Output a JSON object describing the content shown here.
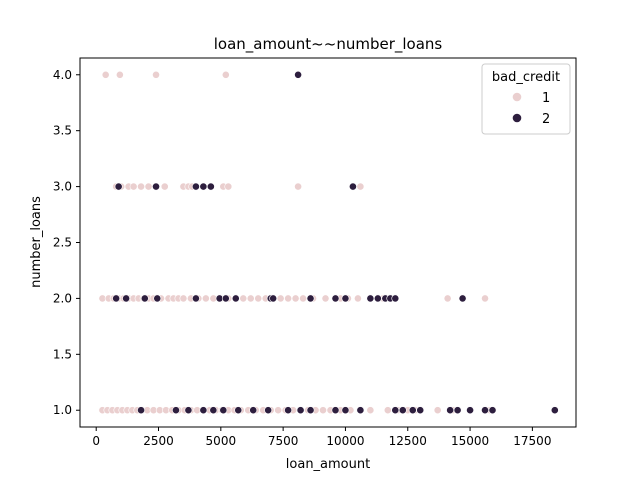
{
  "chart_data": {
    "type": "scatter",
    "title": "loan_amount~~number_loans",
    "xlabel": "loan_amount",
    "ylabel": "number_loans",
    "xlim": [
      -650,
      19250
    ],
    "ylim": [
      0.85,
      4.15
    ],
    "xticks": [
      "0",
      "2500",
      "5000",
      "7500",
      "10000",
      "12500",
      "15000",
      "17500"
    ],
    "xtick_values": [
      0,
      2500,
      5000,
      7500,
      10000,
      12500,
      15000,
      17500
    ],
    "yticks": [
      "1.0",
      "1.5",
      "2.0",
      "2.5",
      "3.0",
      "3.5",
      "4.0"
    ],
    "ytick_values": [
      1.0,
      1.5,
      2.0,
      2.5,
      3.0,
      3.5,
      4.0
    ],
    "grid": false,
    "legend": {
      "title": "bad_credit",
      "placement": "top-right"
    },
    "series": [
      {
        "name": "1",
        "color": "#eacfcf",
        "points": [
          [
            380,
            4
          ],
          [
            950,
            4
          ],
          [
            2400,
            4
          ],
          [
            5200,
            4
          ],
          [
            800,
            3
          ],
          [
            1000,
            3
          ],
          [
            1300,
            3
          ],
          [
            1500,
            3
          ],
          [
            1800,
            3
          ],
          [
            2100,
            3
          ],
          [
            2750,
            3
          ],
          [
            3500,
            3
          ],
          [
            3700,
            3
          ],
          [
            3850,
            3
          ],
          [
            5100,
            3
          ],
          [
            5300,
            3
          ],
          [
            8100,
            3
          ],
          [
            10600,
            3
          ],
          [
            250,
            2
          ],
          [
            500,
            2
          ],
          [
            700,
            2
          ],
          [
            900,
            2
          ],
          [
            1100,
            2
          ],
          [
            1300,
            2
          ],
          [
            1500,
            2
          ],
          [
            1700,
            2
          ],
          [
            1900,
            2
          ],
          [
            2100,
            2
          ],
          [
            2300,
            2
          ],
          [
            2600,
            2
          ],
          [
            2900,
            2
          ],
          [
            3100,
            2
          ],
          [
            3300,
            2
          ],
          [
            3500,
            2
          ],
          [
            3800,
            2
          ],
          [
            4100,
            2
          ],
          [
            4400,
            2
          ],
          [
            4700,
            2
          ],
          [
            5000,
            2
          ],
          [
            5300,
            2
          ],
          [
            5600,
            2
          ],
          [
            5900,
            2
          ],
          [
            6200,
            2
          ],
          [
            6500,
            2
          ],
          [
            6800,
            2
          ],
          [
            7100,
            2
          ],
          [
            7400,
            2
          ],
          [
            7700,
            2
          ],
          [
            8000,
            2
          ],
          [
            8300,
            2
          ],
          [
            8700,
            2
          ],
          [
            9200,
            2
          ],
          [
            9800,
            2
          ],
          [
            10100,
            2
          ],
          [
            10500,
            2
          ],
          [
            11500,
            2
          ],
          [
            14100,
            2
          ],
          [
            15600,
            2
          ],
          [
            250,
            1
          ],
          [
            450,
            1
          ],
          [
            650,
            1
          ],
          [
            850,
            1
          ],
          [
            1050,
            1
          ],
          [
            1250,
            1
          ],
          [
            1450,
            1
          ],
          [
            1650,
            1
          ],
          [
            1850,
            1
          ],
          [
            2050,
            1
          ],
          [
            2300,
            1
          ],
          [
            2550,
            1
          ],
          [
            2800,
            1
          ],
          [
            3050,
            1
          ],
          [
            3300,
            1
          ],
          [
            3550,
            1
          ],
          [
            3800,
            1
          ],
          [
            4050,
            1
          ],
          [
            4300,
            1
          ],
          [
            4550,
            1
          ],
          [
            4800,
            1
          ],
          [
            5050,
            1
          ],
          [
            5300,
            1
          ],
          [
            5550,
            1
          ],
          [
            5800,
            1
          ],
          [
            6100,
            1
          ],
          [
            6400,
            1
          ],
          [
            6700,
            1
          ],
          [
            7000,
            1
          ],
          [
            7300,
            1
          ],
          [
            7600,
            1
          ],
          [
            7900,
            1
          ],
          [
            8200,
            1
          ],
          [
            8500,
            1
          ],
          [
            8800,
            1
          ],
          [
            9100,
            1
          ],
          [
            9400,
            1
          ],
          [
            9800,
            1
          ],
          [
            10200,
            1
          ],
          [
            10600,
            1
          ],
          [
            11000,
            1
          ],
          [
            11700,
            1
          ],
          [
            12100,
            1
          ],
          [
            12500,
            1
          ],
          [
            12800,
            1
          ],
          [
            13700,
            1
          ],
          [
            14300,
            1
          ],
          [
            15800,
            1
          ]
        ]
      },
      {
        "name": "2",
        "color": "#2d1e3e",
        "points": [
          [
            8100,
            4
          ],
          [
            900,
            3
          ],
          [
            2400,
            3
          ],
          [
            4000,
            3
          ],
          [
            4300,
            3
          ],
          [
            4600,
            3
          ],
          [
            10300,
            3
          ],
          [
            800,
            2
          ],
          [
            1200,
            2
          ],
          [
            1950,
            2
          ],
          [
            2450,
            2
          ],
          [
            4000,
            2
          ],
          [
            4950,
            2
          ],
          [
            5200,
            2
          ],
          [
            5600,
            2
          ],
          [
            7000,
            2
          ],
          [
            7100,
            2
          ],
          [
            8600,
            2
          ],
          [
            9600,
            2
          ],
          [
            10000,
            2
          ],
          [
            11000,
            2
          ],
          [
            11300,
            2
          ],
          [
            11600,
            2
          ],
          [
            11800,
            2
          ],
          [
            12000,
            2
          ],
          [
            14700,
            2
          ],
          [
            1800,
            1
          ],
          [
            3200,
            1
          ],
          [
            3700,
            1
          ],
          [
            4300,
            1
          ],
          [
            4700,
            1
          ],
          [
            5100,
            1
          ],
          [
            5700,
            1
          ],
          [
            6300,
            1
          ],
          [
            6900,
            1
          ],
          [
            7700,
            1
          ],
          [
            8200,
            1
          ],
          [
            8600,
            1
          ],
          [
            9600,
            1
          ],
          [
            10000,
            1
          ],
          [
            10600,
            1
          ],
          [
            12000,
            1
          ],
          [
            12300,
            1
          ],
          [
            12700,
            1
          ],
          [
            13000,
            1
          ],
          [
            14200,
            1
          ],
          [
            14500,
            1
          ],
          [
            15000,
            1
          ],
          [
            15600,
            1
          ],
          [
            15900,
            1
          ],
          [
            18400,
            1
          ]
        ]
      }
    ]
  }
}
